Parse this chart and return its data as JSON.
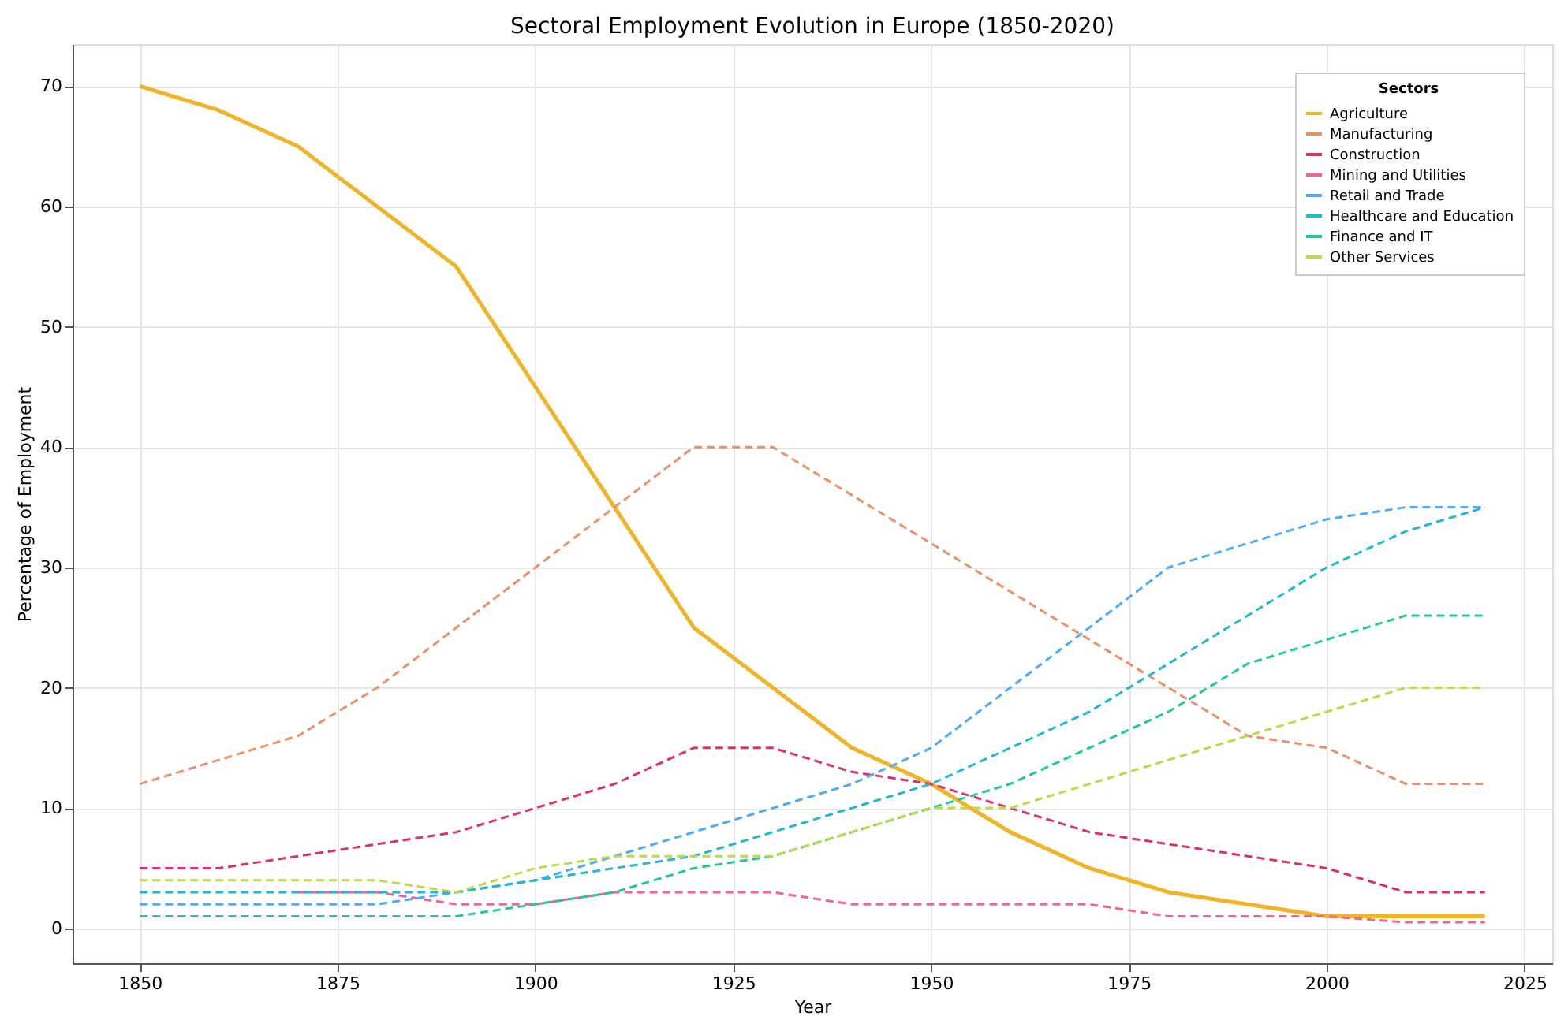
{
  "chart_data": {
    "type": "line",
    "title": "Sectoral Employment Evolution in Europe (1850-2020)",
    "xlabel": "Year",
    "ylabel": "Percentage of Employment",
    "legend_title": "Sectors",
    "legend": "top right",
    "grid": true,
    "marker": "none",
    "x": [
      1850,
      1860,
      1870,
      1880,
      1890,
      1900,
      1910,
      1920,
      1930,
      1940,
      1950,
      1960,
      1970,
      1980,
      1990,
      2000,
      2010,
      2020
    ],
    "xlim": [
      1841.5,
      2028.5
    ],
    "xticks": [
      1850,
      1875,
      1900,
      1925,
      1950,
      1975,
      2000,
      2025
    ],
    "ylim": [
      -2.9,
      73.5
    ],
    "yticks": [
      0,
      10,
      20,
      30,
      40,
      50,
      60,
      70
    ],
    "series": [
      {
        "name": "Agriculture",
        "color": "#f0b429",
        "line_style": "solid",
        "values": [
          70,
          68,
          65,
          60,
          55,
          45,
          35,
          25,
          20,
          15,
          12,
          8,
          5,
          3,
          2,
          1,
          1,
          1
        ]
      },
      {
        "name": "Manufacturing",
        "color": "#e8926b",
        "line_style": "dashed",
        "values": [
          12,
          14,
          16,
          20,
          25,
          30,
          35,
          40,
          40,
          36,
          32,
          28,
          24,
          20,
          16,
          15,
          12,
          12
        ]
      },
      {
        "name": "Construction",
        "color": "#d6336c",
        "line_style": "dashed",
        "values": [
          5,
          5,
          6,
          7,
          8,
          10,
          12,
          15,
          15,
          13,
          12,
          10,
          8,
          7,
          6,
          5,
          3,
          3
        ]
      },
      {
        "name": "Mining and Utilities",
        "color": "#f06595",
        "line_style": "dashed",
        "values": [
          null,
          null,
          3,
          3,
          2,
          2,
          3,
          3,
          3,
          2,
          2,
          2,
          2,
          1,
          1,
          1,
          0.5,
          0.5
        ]
      },
      {
        "name": "Retail and Trade",
        "color": "#4dabf7",
        "line_style": "dashed",
        "values": [
          2,
          2,
          2,
          2,
          3,
          4,
          6,
          8,
          10,
          12,
          15,
          20,
          25,
          30,
          32,
          34,
          35,
          35
        ]
      },
      {
        "name": "Healthcare and Education",
        "color": "#22b8cf",
        "line_style": "dashed",
        "values": [
          3,
          3,
          3,
          3,
          3,
          4,
          5,
          6,
          8,
          10,
          12,
          15,
          18,
          22,
          26,
          30,
          33,
          35
        ]
      },
      {
        "name": "Finance and IT",
        "color": "#20c997",
        "line_style": "dashed",
        "values": [
          1,
          1,
          1,
          1,
          1,
          2,
          3,
          5,
          6,
          8,
          10,
          12,
          15,
          18,
          22,
          24,
          26,
          26
        ]
      },
      {
        "name": "Other Services",
        "color": "#c0d94a",
        "line_style": "dashed",
        "values": [
          4,
          4,
          4,
          4,
          3,
          5,
          6,
          6,
          6,
          8,
          10,
          10,
          12,
          14,
          16,
          18,
          20,
          20
        ]
      }
    ]
  }
}
